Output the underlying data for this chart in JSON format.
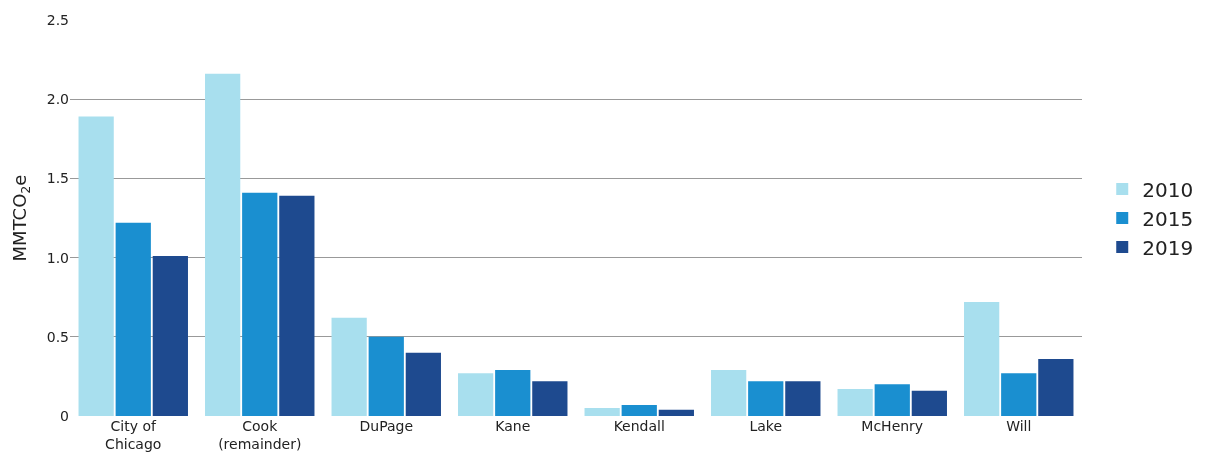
{
  "chart_data": {
    "type": "bar",
    "ylabel": "MMTCO$_{2}$e",
    "categories": [
      "City of\nChicago",
      "Cook\n(remainder)",
      "DuPage",
      "Kane",
      "Kendall",
      "Lake",
      "McHenry",
      "Will"
    ],
    "series": [
      {
        "name": "2010",
        "color": "#a8dfee",
        "values": [
          1.89,
          2.16,
          0.62,
          0.27,
          0.05,
          0.29,
          0.17,
          0.72
        ]
      },
      {
        "name": "2015",
        "color": "#1a8fd0",
        "values": [
          1.22,
          1.41,
          0.5,
          0.29,
          0.07,
          0.22,
          0.2,
          0.27
        ]
      },
      {
        "name": "2019",
        "color": "#1e4a8f",
        "values": [
          1.01,
          1.39,
          0.4,
          0.22,
          0.04,
          0.22,
          0.16,
          0.36
        ]
      }
    ],
    "ylim": [
      0,
      2.5
    ],
    "yticks": [
      0,
      {
        "value": 0.5,
        "label": "0.5"
      },
      {
        "value": 1,
        "label": "1.0"
      },
      {
        "value": 1.5,
        "label": "1.5"
      },
      {
        "value": 2,
        "label": "2.0"
      },
      {
        "value": 2.5,
        "label": "2.5"
      }
    ],
    "grid": "y",
    "legend": "right"
  }
}
